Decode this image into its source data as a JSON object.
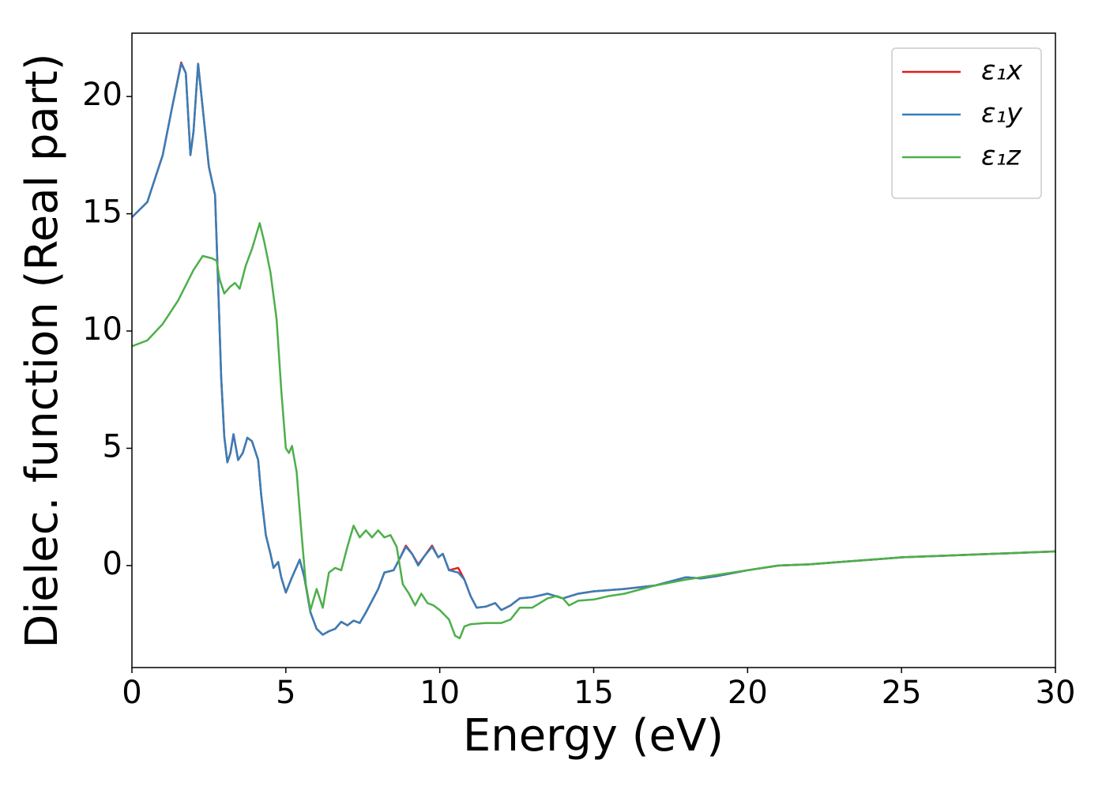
{
  "chart_data": {
    "type": "line",
    "xlabel": "Energy (eV)",
    "ylabel": "Dielec. function (Real part)",
    "xlim": [
      0,
      30
    ],
    "ylim": [
      -4.35,
      22.7
    ],
    "xticks": [
      0,
      5,
      10,
      15,
      20,
      25,
      30
    ],
    "yticks": [
      0,
      5,
      10,
      15,
      20
    ],
    "legend": "upper right",
    "series": [
      {
        "name": "ε₁x",
        "color": "#e41a1c",
        "x": [
          0,
          0.5,
          1.0,
          1.3,
          1.6,
          1.75,
          1.9,
          2.0,
          2.15,
          2.3,
          2.5,
          2.7,
          2.8,
          2.9,
          3.0,
          3.1,
          3.2,
          3.3,
          3.45,
          3.6,
          3.75,
          3.9,
          4.1,
          4.2,
          4.35,
          4.5,
          4.6,
          4.75,
          4.85,
          5.0,
          5.2,
          5.45,
          5.6,
          5.8,
          6.0,
          6.2,
          6.4,
          6.6,
          6.8,
          7.0,
          7.2,
          7.4,
          7.6,
          7.8,
          8.0,
          8.2,
          8.5,
          8.7,
          8.9,
          9.1,
          9.3,
          9.5,
          9.75,
          9.95,
          10.1,
          10.3,
          10.6,
          10.8,
          11.0,
          11.2,
          11.5,
          11.8,
          12.0,
          12.3,
          12.6,
          13.0,
          13.5,
          14.0,
          14.5,
          15.0,
          15.5,
          16.0,
          17.0,
          18.0,
          18.5,
          19.0,
          20.0,
          21.0,
          22.0,
          23.0,
          24.0,
          25.0,
          26.0,
          27.0,
          28.0,
          29.0,
          30.0
        ],
        "values": [
          14.85,
          15.5,
          17.5,
          19.5,
          21.45,
          21.0,
          17.5,
          18.5,
          21.4,
          19.5,
          17.0,
          15.8,
          12,
          8,
          5.5,
          4.4,
          4.8,
          5.6,
          4.5,
          4.8,
          5.45,
          5.3,
          4.5,
          3.0,
          1.3,
          0.5,
          -0.1,
          0.15,
          -0.5,
          -1.15,
          -0.5,
          0.25,
          -0.5,
          -2,
          -2.7,
          -2.95,
          -2.8,
          -2.7,
          -2.4,
          -2.55,
          -2.35,
          -2.45,
          -2.0,
          -1.5,
          -1.0,
          -0.3,
          -0.2,
          0.3,
          0.85,
          0.5,
          0.05,
          0.4,
          0.85,
          0.35,
          0.5,
          -0.2,
          -0.1,
          -0.6,
          -1.3,
          -1.8,
          -1.75,
          -1.6,
          -1.9,
          -1.7,
          -1.4,
          -1.35,
          -1.2,
          -1.4,
          -1.2,
          -1.1,
          -1.05,
          -1.0,
          -0.85,
          -0.5,
          -0.55,
          -0.45,
          -0.2,
          0.0,
          0.05,
          0.15,
          0.25,
          0.35,
          0.4,
          0.45,
          0.5,
          0.55,
          0.6
        ]
      },
      {
        "name": "ε₁y",
        "color": "#377eb8",
        "x": [
          0,
          0.5,
          1.0,
          1.3,
          1.6,
          1.75,
          1.9,
          2.0,
          2.15,
          2.3,
          2.5,
          2.7,
          2.8,
          2.9,
          3.0,
          3.1,
          3.2,
          3.3,
          3.45,
          3.6,
          3.75,
          3.9,
          4.1,
          4.2,
          4.35,
          4.5,
          4.6,
          4.75,
          4.85,
          5.0,
          5.2,
          5.45,
          5.6,
          5.8,
          6.0,
          6.2,
          6.4,
          6.6,
          6.8,
          7.0,
          7.2,
          7.4,
          7.6,
          7.8,
          8.0,
          8.2,
          8.5,
          8.7,
          8.9,
          9.1,
          9.3,
          9.5,
          9.75,
          9.95,
          10.1,
          10.3,
          10.6,
          10.8,
          11.0,
          11.2,
          11.5,
          11.8,
          12.0,
          12.3,
          12.6,
          13.0,
          13.5,
          14.0,
          14.5,
          15.0,
          15.5,
          16.0,
          17.0,
          18.0,
          18.5,
          19.0,
          20.0,
          21.0,
          22.0,
          23.0,
          24.0,
          25.0,
          26.0,
          27.0,
          28.0,
          29.0,
          30.0
        ],
        "values": [
          14.85,
          15.5,
          17.5,
          19.5,
          21.4,
          21.0,
          17.5,
          18.5,
          21.4,
          19.5,
          17.0,
          15.8,
          12,
          8,
          5.5,
          4.4,
          4.8,
          5.6,
          4.5,
          4.8,
          5.45,
          5.3,
          4.5,
          3.0,
          1.3,
          0.5,
          -0.1,
          0.15,
          -0.5,
          -1.15,
          -0.5,
          0.25,
          -0.5,
          -2,
          -2.7,
          -2.95,
          -2.8,
          -2.7,
          -2.4,
          -2.55,
          -2.35,
          -2.45,
          -2.0,
          -1.5,
          -1.0,
          -0.3,
          -0.2,
          0.3,
          0.8,
          0.5,
          0.0,
          0.4,
          0.8,
          0.35,
          0.5,
          -0.2,
          -0.3,
          -0.6,
          -1.3,
          -1.8,
          -1.75,
          -1.6,
          -1.9,
          -1.7,
          -1.4,
          -1.35,
          -1.2,
          -1.4,
          -1.2,
          -1.1,
          -1.05,
          -1.0,
          -0.85,
          -0.5,
          -0.55,
          -0.45,
          -0.2,
          0.0,
          0.05,
          0.15,
          0.25,
          0.35,
          0.4,
          0.45,
          0.5,
          0.55,
          0.6
        ]
      },
      {
        "name": "ε₁z",
        "color": "#4daf4a",
        "x": [
          0,
          0.5,
          1.0,
          1.5,
          2.0,
          2.3,
          2.6,
          2.75,
          2.85,
          3.0,
          3.2,
          3.35,
          3.5,
          3.7,
          3.9,
          4.15,
          4.3,
          4.5,
          4.7,
          4.85,
          5.0,
          5.1,
          5.2,
          5.35,
          5.5,
          5.65,
          5.8,
          6.0,
          6.2,
          6.4,
          6.6,
          6.8,
          7.0,
          7.2,
          7.4,
          7.6,
          7.8,
          8.0,
          8.2,
          8.4,
          8.6,
          8.8,
          9.0,
          9.2,
          9.4,
          9.6,
          9.8,
          10.0,
          10.3,
          10.5,
          10.65,
          10.8,
          11.0,
          11.5,
          12.0,
          12.3,
          12.6,
          13.0,
          13.5,
          13.8,
          14.0,
          14.2,
          14.5,
          15.0,
          15.5,
          16.0,
          17.0,
          18.0,
          19.0,
          20.0,
          21.0,
          22.0,
          23.0,
          24.0,
          25.0,
          26.0,
          27.0,
          28.0,
          29.0,
          30.0
        ],
        "values": [
          9.35,
          9.6,
          10.3,
          11.3,
          12.6,
          13.2,
          13.1,
          13.0,
          12.2,
          11.6,
          11.9,
          12.05,
          11.8,
          12.8,
          13.5,
          14.6,
          13.8,
          12.5,
          10.5,
          7.5,
          5.0,
          4.8,
          5.1,
          4.0,
          1.5,
          -0.8,
          -1.9,
          -1.0,
          -1.8,
          -0.3,
          -0.1,
          -0.2,
          0.8,
          1.7,
          1.2,
          1.5,
          1.2,
          1.5,
          1.2,
          1.3,
          0.8,
          -0.8,
          -1.2,
          -1.7,
          -1.2,
          -1.6,
          -1.7,
          -1.9,
          -2.3,
          -3.0,
          -3.1,
          -2.6,
          -2.5,
          -2.45,
          -2.45,
          -2.3,
          -1.8,
          -1.8,
          -1.4,
          -1.3,
          -1.4,
          -1.7,
          -1.5,
          -1.45,
          -1.3,
          -1.2,
          -0.85,
          -0.6,
          -0.4,
          -0.2,
          0.0,
          0.05,
          0.15,
          0.25,
          0.35,
          0.4,
          0.45,
          0.5,
          0.55,
          0.6
        ]
      }
    ]
  }
}
